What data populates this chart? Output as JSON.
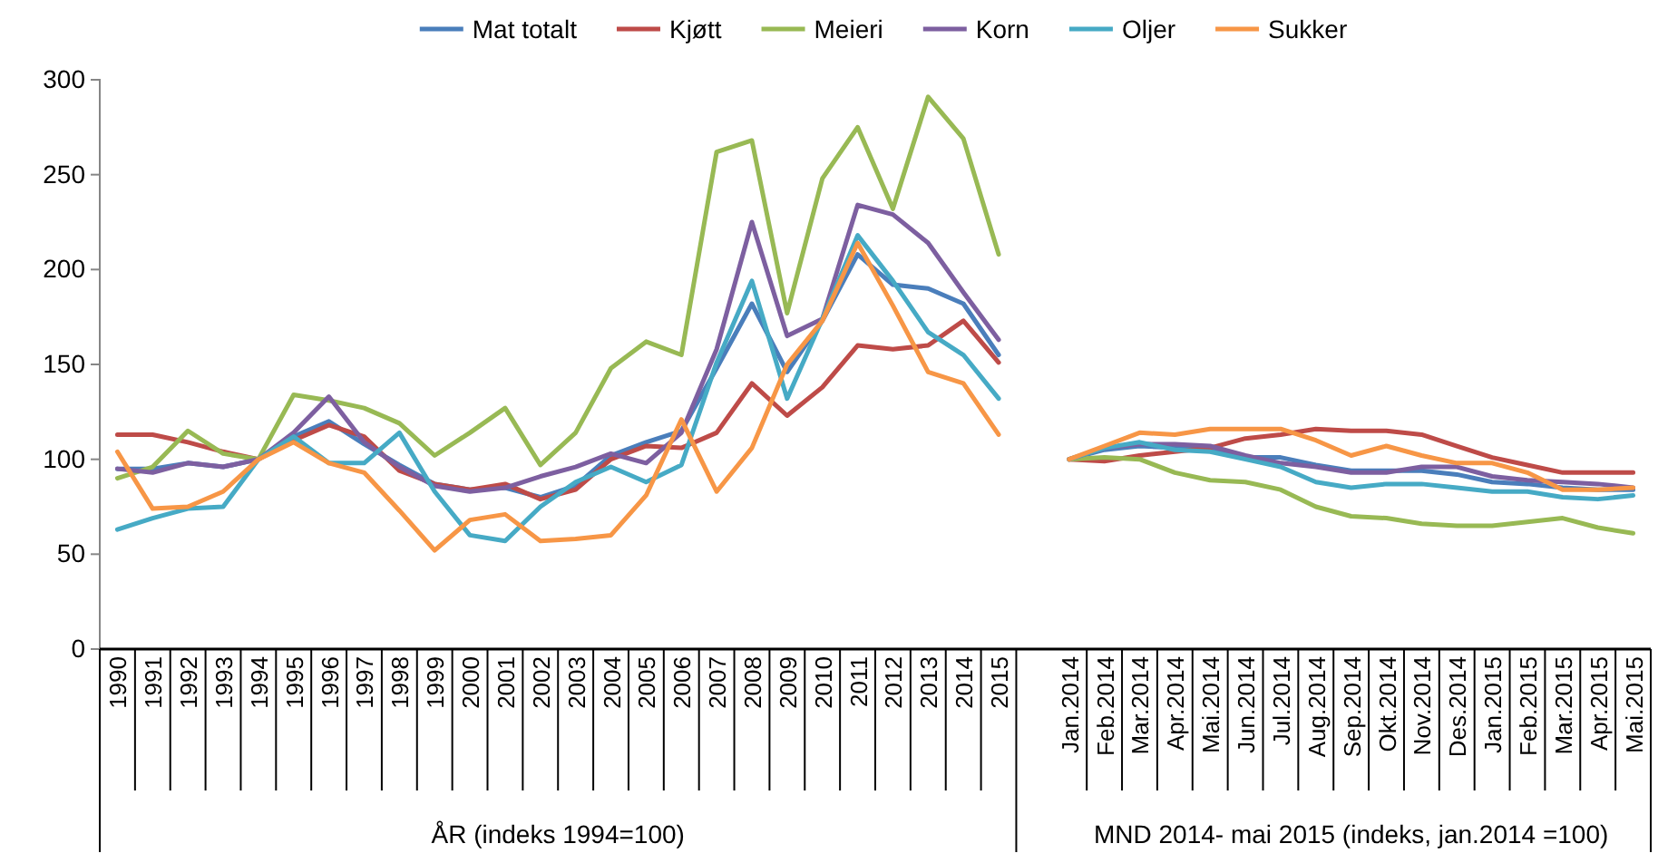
{
  "chart_data": {
    "type": "line",
    "categories": [
      "1990",
      "1991",
      "1992",
      "1993",
      "1994",
      "1995",
      "1996",
      "1997",
      "1998",
      "1999",
      "2000",
      "2001",
      "2002",
      "2003",
      "2004",
      "2005",
      "2006",
      "2007",
      "2008",
      "2009",
      "2010",
      "2011",
      "2012",
      "2013",
      "2014",
      "2015",
      null,
      "Jan.2014",
      "Feb.2014",
      "Mar.2014",
      "Apr.2014",
      "Mai.2014",
      "Jun.2014",
      "Jul.2014",
      "Aug.2014",
      "Sep.2014",
      "Okt.2014",
      "Nov.2014",
      "Des.2014",
      "Jan.2015",
      "Feb.2015",
      "Mar.2015",
      "Apr.2015",
      "Mai.2015"
    ],
    "series": [
      {
        "name": "Mat totalt",
        "color": "#4a7ebb",
        "values": [
          95,
          95,
          98,
          96,
          100,
          112,
          120,
          108,
          97,
          87,
          84,
          85,
          80,
          86,
          102,
          109,
          115,
          148,
          182,
          146,
          173,
          208,
          192,
          190,
          182,
          155,
          null,
          100,
          105,
          107,
          106,
          105,
          101,
          101,
          97,
          94,
          94,
          94,
          92,
          88,
          87,
          85,
          84,
          84
        ]
      },
      {
        "name": "Kjøtt",
        "color": "#be4b48",
        "values": [
          113,
          113,
          109,
          104,
          100,
          110,
          118,
          112,
          94,
          87,
          84,
          87,
          79,
          84,
          100,
          107,
          106,
          114,
          140,
          123,
          138,
          160,
          158,
          160,
          173,
          151,
          null,
          100,
          99,
          102,
          104,
          106,
          111,
          113,
          116,
          115,
          115,
          113,
          107,
          101,
          97,
          93,
          93,
          93
        ]
      },
      {
        "name": "Meieri",
        "color": "#98b954",
        "values": [
          90,
          96,
          115,
          103,
          100,
          134,
          131,
          127,
          119,
          102,
          114,
          127,
          97,
          114,
          148,
          162,
          155,
          262,
          268,
          177,
          248,
          275,
          232,
          291,
          269,
          208,
          null,
          100,
          101,
          100,
          93,
          89,
          88,
          84,
          75,
          70,
          69,
          66,
          65,
          65,
          67,
          69,
          64,
          61
        ]
      },
      {
        "name": "Korn",
        "color": "#7d5fa0",
        "values": [
          95,
          93,
          98,
          96,
          100,
          114,
          133,
          109,
          96,
          86,
          83,
          85,
          91,
          96,
          103,
          98,
          114,
          158,
          225,
          165,
          174,
          234,
          229,
          214,
          188,
          163,
          null,
          100,
          106,
          108,
          108,
          107,
          102,
          98,
          96,
          93,
          93,
          96,
          96,
          91,
          89,
          88,
          87,
          85
        ]
      },
      {
        "name": "Oljer",
        "color": "#46aac5",
        "values": [
          63,
          69,
          74,
          75,
          100,
          112,
          98,
          98,
          114,
          83,
          60,
          57,
          75,
          88,
          96,
          88,
          97,
          151,
          194,
          132,
          174,
          218,
          194,
          167,
          155,
          132,
          null,
          100,
          106,
          109,
          105,
          104,
          100,
          96,
          88,
          85,
          87,
          87,
          85,
          83,
          83,
          80,
          79,
          81
        ]
      },
      {
        "name": "Sukker",
        "color": "#f79646",
        "values": [
          104,
          74,
          75,
          83,
          100,
          109,
          98,
          93,
          73,
          52,
          68,
          71,
          57,
          58,
          60,
          81,
          121,
          83,
          106,
          150,
          173,
          214,
          181,
          146,
          140,
          113,
          null,
          100,
          107,
          114,
          113,
          116,
          116,
          116,
          110,
          102,
          107,
          102,
          98,
          98,
          93,
          84,
          84,
          85
        ]
      }
    ],
    "ylim": [
      0,
      300
    ],
    "yticks": [
      0,
      50,
      100,
      150,
      200,
      250,
      300
    ],
    "grid": false,
    "legend": "top",
    "marker": "none",
    "line_style": "solid",
    "annotations": [
      "ÅR (indeks 1994=100)",
      "MND 2014- mai 2015 (indeks, jan.2014 =100)"
    ]
  }
}
